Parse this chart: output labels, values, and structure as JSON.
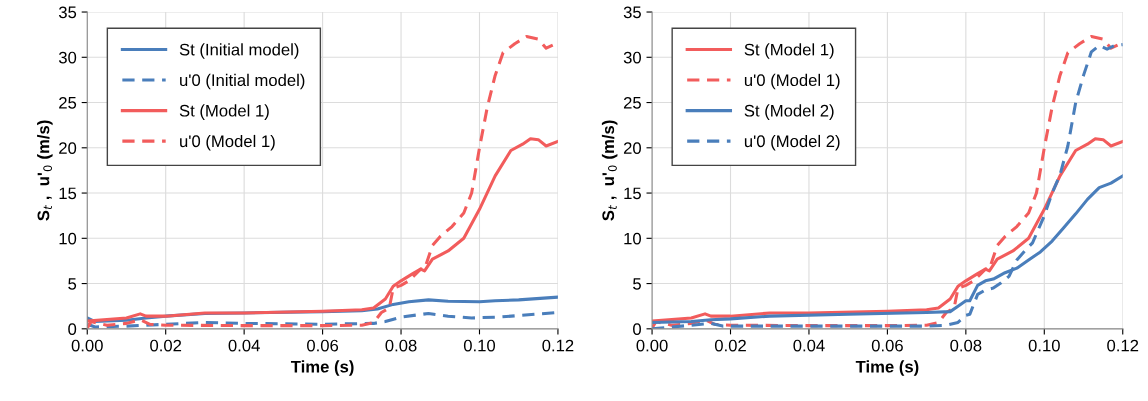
{
  "chart_data": [
    {
      "type": "line",
      "xlabel": "Time (s)",
      "ylabel": "S$_{t}$ ,  u'$_{0}$ (m/s)",
      "xlim": [
        0,
        0.12
      ],
      "xticks": [
        {
          "value": 0,
          "label": "0.00"
        },
        {
          "value": 0.02,
          "label": "0.02"
        },
        {
          "value": 0.04,
          "label": "0.04"
        },
        {
          "value": 0.06,
          "label": "0.06"
        },
        {
          "value": 0.08,
          "label": "0.08"
        },
        {
          "value": 0.1,
          "label": "0.10"
        },
        {
          "value": 0.12,
          "label": "0.12"
        }
      ],
      "ylim": [
        0,
        35
      ],
      "yticks": [
        0,
        5,
        10,
        15,
        20,
        25,
        30,
        35
      ],
      "grid": true,
      "legend": "top left",
      "marker": "none",
      "series": [
        {
          "name": "St (Initial model)",
          "color": "#4a7ebb",
          "line_style": "solid",
          "x": [
            0,
            0.002,
            0.01,
            0.015,
            0.02,
            0.03,
            0.04,
            0.06,
            0.07,
            0.074,
            0.078,
            0.082,
            0.087,
            0.092,
            0.1,
            0.104,
            0.11,
            0.12
          ],
          "values": [
            1.2,
            0.8,
            0.95,
            1.2,
            1.4,
            1.7,
            1.75,
            1.9,
            2.0,
            2.2,
            2.7,
            3.0,
            3.2,
            3.05,
            3.0,
            3.1,
            3.2,
            3.5
          ]
        },
        {
          "name": "u'0 (Initial model)",
          "color": "#4a7ebb",
          "line_style": "dashed",
          "x": [
            0,
            0.002,
            0.01,
            0.015,
            0.02,
            0.03,
            0.04,
            0.06,
            0.073,
            0.076,
            0.08,
            0.087,
            0.092,
            0.098,
            0.105,
            0.12
          ],
          "values": [
            0.5,
            0.2,
            0.3,
            0.4,
            0.5,
            0.7,
            0.6,
            0.5,
            0.6,
            0.8,
            1.3,
            1.7,
            1.4,
            1.2,
            1.3,
            1.8
          ]
        },
        {
          "name": "St (Model 1)",
          "color": "#f25c5c",
          "line_style": "solid",
          "x": [
            0,
            0.01,
            0.0135,
            0.015,
            0.02,
            0.03,
            0.04,
            0.06,
            0.07,
            0.073,
            0.076,
            0.078,
            0.08,
            0.083,
            0.085,
            0.086,
            0.088,
            0.092,
            0.096,
            0.1,
            0.104,
            0.108,
            0.111,
            0.113,
            0.115,
            0.117,
            0.12
          ],
          "values": [
            0.85,
            1.2,
            1.65,
            1.4,
            1.4,
            1.75,
            1.75,
            1.95,
            2.1,
            2.3,
            3.3,
            4.7,
            5.3,
            6.1,
            6.6,
            6.4,
            7.7,
            8.6,
            10.0,
            13.2,
            16.9,
            19.7,
            20.4,
            21.0,
            20.9,
            20.2,
            20.7
          ]
        },
        {
          "name": "u'0 (Model 1)",
          "color": "#f25c5c",
          "line_style": "dashed",
          "x": [
            0,
            0.001,
            0.005,
            0.01,
            0.0135,
            0.016,
            0.02,
            0.04,
            0.06,
            0.07,
            0.073,
            0.075,
            0.077,
            0.078,
            0.08,
            0.082,
            0.085,
            0.086,
            0.088,
            0.09,
            0.093,
            0.096,
            0.098,
            0.1,
            0.102,
            0.104,
            0.106,
            0.109,
            0.112,
            0.115,
            0.117,
            0.12
          ],
          "values": [
            0.1,
            0.8,
            0.4,
            0.6,
            1.0,
            0.5,
            0.4,
            0.35,
            0.35,
            0.4,
            0.7,
            1.8,
            2.3,
            4.5,
            4.8,
            5.3,
            6.6,
            6.6,
            9.2,
            10.2,
            11.3,
            12.8,
            15,
            20,
            24.5,
            28,
            30.5,
            31.5,
            32.3,
            32.0,
            31.0,
            31.6
          ]
        }
      ]
    },
    {
      "type": "line",
      "xlabel": "Time (s)",
      "ylabel": "S$_{t}$ ,  u'$_{0}$ (m/s)",
      "xlim": [
        0,
        0.12
      ],
      "xticks": [
        {
          "value": 0,
          "label": "0.00"
        },
        {
          "value": 0.02,
          "label": "0.02"
        },
        {
          "value": 0.04,
          "label": "0.04"
        },
        {
          "value": 0.06,
          "label": "0.06"
        },
        {
          "value": 0.08,
          "label": "0.08"
        },
        {
          "value": 0.1,
          "label": "0.10"
        },
        {
          "value": 0.12,
          "label": "0.12"
        }
      ],
      "ylim": [
        0,
        35
      ],
      "yticks": [
        0,
        5,
        10,
        15,
        20,
        25,
        30,
        35
      ],
      "grid": true,
      "legend": "top left",
      "marker": "none",
      "series": [
        {
          "name": "St (Model 1)",
          "color": "#f25c5c",
          "line_style": "solid",
          "x": [
            0,
            0.01,
            0.0135,
            0.015,
            0.02,
            0.03,
            0.04,
            0.06,
            0.07,
            0.073,
            0.076,
            0.078,
            0.08,
            0.083,
            0.085,
            0.086,
            0.088,
            0.092,
            0.096,
            0.1,
            0.104,
            0.108,
            0.111,
            0.113,
            0.115,
            0.117,
            0.12
          ],
          "values": [
            0.85,
            1.2,
            1.65,
            1.4,
            1.4,
            1.75,
            1.75,
            1.95,
            2.1,
            2.3,
            3.3,
            4.7,
            5.3,
            6.1,
            6.6,
            6.4,
            7.7,
            8.6,
            10.0,
            13.2,
            16.9,
            19.7,
            20.4,
            21.0,
            20.9,
            20.2,
            20.7
          ]
        },
        {
          "name": "u'0 (Model 1)",
          "color": "#f25c5c",
          "line_style": "dashed",
          "x": [
            0,
            0.001,
            0.005,
            0.01,
            0.0135,
            0.016,
            0.02,
            0.04,
            0.06,
            0.07,
            0.073,
            0.075,
            0.077,
            0.078,
            0.08,
            0.082,
            0.085,
            0.086,
            0.088,
            0.09,
            0.093,
            0.096,
            0.098,
            0.1,
            0.102,
            0.104,
            0.106,
            0.109,
            0.112,
            0.115,
            0.117,
            0.12
          ],
          "values": [
            0.1,
            0.8,
            0.4,
            0.6,
            1.0,
            0.5,
            0.4,
            0.35,
            0.35,
            0.4,
            0.7,
            1.8,
            2.3,
            4.5,
            4.8,
            5.3,
            6.6,
            6.6,
            9.2,
            10.2,
            11.3,
            12.8,
            15,
            20,
            24.5,
            28,
            30.5,
            31.5,
            32.3,
            32.0,
            31.0,
            31.6
          ]
        },
        {
          "name": "St (Model 2)",
          "color": "#4a7ebb",
          "line_style": "solid",
          "x": [
            0,
            0.01,
            0.015,
            0.02,
            0.03,
            0.05,
            0.07,
            0.076,
            0.078,
            0.08,
            0.081,
            0.083,
            0.085,
            0.087,
            0.09,
            0.093,
            0.096,
            0.099,
            0.102,
            0.105,
            0.108,
            0.111,
            0.114,
            0.117,
            0.12
          ],
          "values": [
            0.7,
            0.8,
            1.0,
            1.1,
            1.4,
            1.6,
            1.8,
            1.9,
            2.5,
            3.1,
            3.1,
            4.8,
            5.3,
            5.5,
            6.2,
            6.7,
            7.6,
            8.5,
            9.7,
            11.2,
            12.7,
            14.3,
            15.6,
            16.1,
            16.9
          ]
        },
        {
          "name": "u'0 (Model 2)",
          "color": "#4a7ebb",
          "line_style": "dashed",
          "x": [
            0,
            0.005,
            0.01,
            0.015,
            0.018,
            0.02,
            0.04,
            0.07,
            0.075,
            0.078,
            0.08,
            0.081,
            0.083,
            0.085,
            0.087,
            0.089,
            0.091,
            0.093,
            0.095,
            0.097,
            0.1,
            0.102,
            0.104,
            0.106,
            0.108,
            0.11,
            0.112,
            0.114,
            0.116,
            0.118,
            0.12
          ],
          "values": [
            0.0,
            0.2,
            0.4,
            0.6,
            0.3,
            0.3,
            0.3,
            0.3,
            0.4,
            0.7,
            1.5,
            1.6,
            3.8,
            4.3,
            4.5,
            5.1,
            5.8,
            7.6,
            8.6,
            9.5,
            12.5,
            15,
            17,
            20.2,
            25,
            28,
            30.6,
            31.3,
            30.9,
            31.3,
            31.4
          ]
        }
      ]
    }
  ]
}
